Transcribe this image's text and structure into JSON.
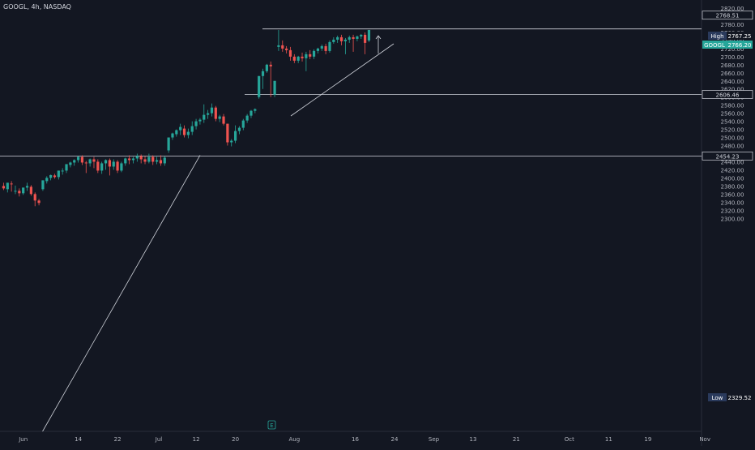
{
  "header": {
    "symbol_line": "GOOGL, 4h, NASDAQ"
  },
  "colors": {
    "background": "#131722",
    "up": "#26a69a",
    "down": "#ef5350",
    "axis_text": "#b2b5be",
    "line": "#d1d4dc",
    "label_bg": "#131722",
    "label_border": "#d1d4dc",
    "high_low_bg": "#2a3a5c",
    "price_tag_bg": "#26a69a"
  },
  "chart_data": {
    "type": "candlestick",
    "ylim": [
      2290,
      2820
    ],
    "price_ticks": [
      2300,
      2320,
      2340,
      2360,
      2380,
      2400,
      2420,
      2440,
      2460,
      2480,
      2500,
      2520,
      2540,
      2560,
      2580,
      2600,
      2620,
      2640,
      2660,
      2680,
      2700,
      2720,
      2740,
      2760,
      2780,
      2800,
      2820
    ],
    "price_tick_labels": [
      "2300.00",
      "2320.00",
      "2340.00",
      "2360.00",
      "2380.00",
      "2400.00",
      "2420.00",
      "2440.00",
      "2460.00",
      "2480.00",
      "2500.00",
      "2520.00",
      "2540.00",
      "2560.00",
      "2580.00",
      "2600.00",
      "2620.00",
      "2640.00",
      "2660.00",
      "2680.00",
      "2700.00",
      "2720.00",
      "2740.00",
      "2760.00",
      "2780.00",
      "2800.00",
      "2820.00"
    ],
    "time_labels": [
      {
        "label": "Jun",
        "bar": 5.5
      },
      {
        "label": "14",
        "bar": 19.5
      },
      {
        "label": "22",
        "bar": 29.5
      },
      {
        "label": "Jul",
        "bar": 40
      },
      {
        "label": "12",
        "bar": 49.5
      },
      {
        "label": "20",
        "bar": 59.5
      },
      {
        "label": "Aug",
        "bar": 74.5
      },
      {
        "label": "16",
        "bar": 90
      },
      {
        "label": "24",
        "bar": 100
      },
      {
        "label": "Sep",
        "bar": 110
      },
      {
        "label": "13",
        "bar": 120
      },
      {
        "label": "21",
        "bar": 131
      },
      {
        "label": "Oct",
        "bar": 144.5
      },
      {
        "label": "11",
        "bar": 154.5
      },
      {
        "label": "19",
        "bar": 164.5
      },
      {
        "label": "Nov",
        "bar": 179
      }
    ],
    "candles": [
      [
        2380,
        2388,
        2374,
        2370
      ],
      [
        2372,
        2378,
        2388,
        2364
      ],
      [
        2386,
        2392,
        2384,
        2366
      ],
      [
        2366,
        2381,
        2368,
        2360
      ],
      [
        2368,
        2374,
        2362,
        2354
      ],
      [
        2362,
        2370,
        2376,
        2358
      ],
      [
        2376,
        2388,
        2380,
        2368
      ],
      [
        2378,
        2382,
        2360,
        2356
      ],
      [
        2360,
        2364,
        2344,
        2330
      ],
      [
        2344,
        2348,
        2338,
        2332
      ],
      [
        2372,
        2392,
        2394,
        2368
      ],
      [
        2392,
        2404,
        2400,
        2386
      ],
      [
        2400,
        2408,
        2407,
        2394
      ],
      [
        2406,
        2410,
        2402,
        2398
      ],
      [
        2402,
        2416,
        2418,
        2396
      ],
      [
        2416,
        2424,
        2418,
        2408
      ],
      [
        2418,
        2432,
        2434,
        2412
      ],
      [
        2432,
        2440,
        2438,
        2426
      ],
      [
        2438,
        2446,
        2444,
        2430
      ],
      [
        2444,
        2454,
        2452,
        2438
      ],
      [
        2452,
        2456,
        2438,
        2432
      ],
      [
        2438,
        2442,
        2436,
        2412
      ],
      [
        2436,
        2448,
        2446,
        2428
      ],
      [
        2446,
        2452,
        2440,
        2424
      ],
      [
        2440,
        2446,
        2418,
        2412
      ],
      [
        2418,
        2440,
        2436,
        2410
      ],
      [
        2436,
        2446,
        2444,
        2420
      ],
      [
        2444,
        2448,
        2428,
        2406
      ],
      [
        2428,
        2446,
        2440,
        2420
      ],
      [
        2440,
        2444,
        2418,
        2412
      ],
      [
        2418,
        2440,
        2436,
        2414
      ],
      [
        2436,
        2450,
        2448,
        2430
      ],
      [
        2448,
        2456,
        2444,
        2434
      ],
      [
        2444,
        2452,
        2448,
        2436
      ],
      [
        2448,
        2460,
        2454,
        2440
      ],
      [
        2454,
        2458,
        2446,
        2436
      ],
      [
        2446,
        2454,
        2440,
        2434
      ],
      [
        2440,
        2460,
        2452,
        2436
      ],
      [
        2452,
        2456,
        2440,
        2432
      ],
      [
        2440,
        2452,
        2444,
        2434
      ],
      [
        2444,
        2456,
        2436,
        2430
      ],
      [
        2436,
        2454,
        2450,
        2430
      ],
      [
        2468,
        2482,
        2500,
        2462
      ],
      [
        2500,
        2512,
        2510,
        2494
      ],
      [
        2508,
        2520,
        2518,
        2502
      ],
      [
        2518,
        2534,
        2526,
        2506
      ],
      [
        2522,
        2530,
        2506,
        2500
      ],
      [
        2506,
        2522,
        2514,
        2498
      ],
      [
        2514,
        2540,
        2528,
        2506
      ],
      [
        2528,
        2546,
        2540,
        2520
      ],
      [
        2540,
        2548,
        2544,
        2532
      ],
      [
        2544,
        2582,
        2556,
        2536
      ],
      [
        2556,
        2568,
        2560,
        2546
      ],
      [
        2560,
        2584,
        2574,
        2552
      ],
      [
        2574,
        2578,
        2546,
        2540
      ],
      [
        2546,
        2556,
        2552,
        2538
      ],
      [
        2552,
        2558,
        2534,
        2530
      ],
      [
        2534,
        2526,
        2488,
        2480
      ],
      [
        2488,
        2496,
        2492,
        2478
      ],
      [
        2492,
        2530,
        2516,
        2486
      ],
      [
        2516,
        2528,
        2524,
        2508
      ],
      [
        2524,
        2546,
        2542,
        2518
      ],
      [
        2542,
        2558,
        2554,
        2536
      ],
      [
        2554,
        2568,
        2566,
        2548
      ],
      [
        2566,
        2572,
        2570,
        2560
      ],
      [
        2600,
        2612,
        2652,
        2596
      ],
      [
        2652,
        2670,
        2664,
        2620
      ],
      [
        2664,
        2682,
        2680,
        2660
      ],
      [
        2680,
        2688,
        2676,
        2600
      ],
      [
        2606,
        2612,
        2640,
        2600
      ],
      [
        2724,
        2766,
        2728,
        2714
      ],
      [
        2728,
        2740,
        2720,
        2712
      ],
      [
        2720,
        2726,
        2716,
        2708
      ],
      [
        2716,
        2724,
        2700,
        2690
      ],
      [
        2700,
        2706,
        2690,
        2684
      ],
      [
        2690,
        2702,
        2700,
        2684
      ],
      [
        2700,
        2710,
        2696,
        2688
      ],
      [
        2696,
        2712,
        2706,
        2664
      ],
      [
        2706,
        2716,
        2700,
        2694
      ],
      [
        2700,
        2718,
        2714,
        2694
      ],
      [
        2714,
        2722,
        2720,
        2708
      ],
      [
        2720,
        2730,
        2726,
        2714
      ],
      [
        2726,
        2732,
        2714,
        2706
      ],
      [
        2714,
        2740,
        2736,
        2710
      ],
      [
        2736,
        2748,
        2742,
        2732
      ],
      [
        2742,
        2752,
        2748,
        2734
      ],
      [
        2748,
        2754,
        2738,
        2728
      ],
      [
        2738,
        2746,
        2742,
        2706
      ],
      [
        2742,
        2752,
        2748,
        2734
      ],
      [
        2748,
        2754,
        2744,
        2712
      ],
      [
        2744,
        2752,
        2750,
        2738
      ],
      [
        2750,
        2756,
        2754,
        2744
      ],
      [
        2754,
        2760,
        2734,
        2706
      ],
      [
        2740,
        2752,
        2766,
        2736
      ]
    ],
    "annotations": {
      "resistance_line": {
        "price": 2768.51,
        "label": "2768.51"
      },
      "support_line_1": {
        "price": 2606.46,
        "label": "2606.46"
      },
      "support_line_2": {
        "price": 2454.23,
        "label": "2454.23"
      },
      "high": {
        "label": "High",
        "price": "2767.25"
      },
      "last": {
        "label": "GOOGL",
        "price": "2766.20"
      },
      "low": {
        "label": "Low",
        "price": "2329.52"
      },
      "trendline_1": [
        [
          3,
          2290
        ],
        [
          54,
          2456
        ]
      ],
      "trendline_2": [
        [
          76,
          2680
        ],
        [
          98,
          2766
        ]
      ],
      "event_marker": "E"
    }
  }
}
